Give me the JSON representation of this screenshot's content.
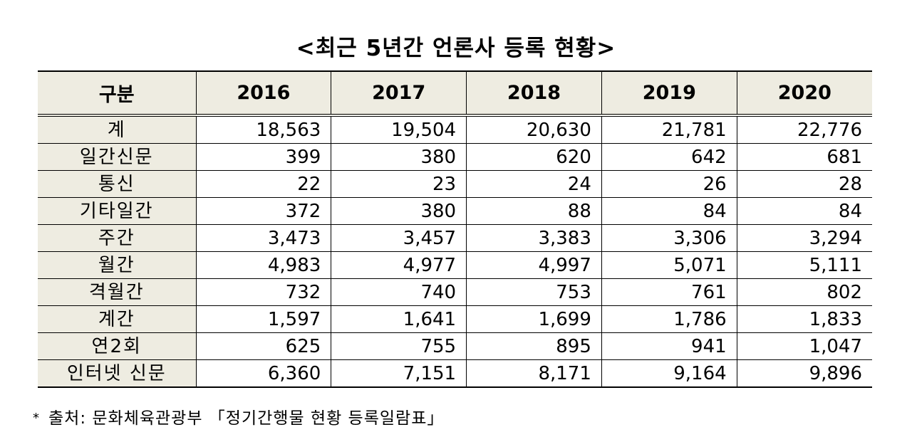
{
  "title": "<최근 5년간 언론사 등록 현황>",
  "table": {
    "headers": [
      "구분",
      "2016",
      "2017",
      "2018",
      "2019",
      "2020"
    ],
    "rows": [
      {
        "label": "계",
        "values": [
          "18,563",
          "19,504",
          "20,630",
          "21,781",
          "22,776"
        ]
      },
      {
        "label": "일간신문",
        "values": [
          "399",
          "380",
          "620",
          "642",
          "681"
        ]
      },
      {
        "label": "통신",
        "values": [
          "22",
          "23",
          "24",
          "26",
          "28"
        ]
      },
      {
        "label": "기타일간",
        "values": [
          "372",
          "380",
          "88",
          "84",
          "84"
        ]
      },
      {
        "label": "주간",
        "values": [
          "3,473",
          "3,457",
          "3,383",
          "3,306",
          "3,294"
        ]
      },
      {
        "label": "월간",
        "values": [
          "4,983",
          "4,977",
          "4,997",
          "5,071",
          "5,111"
        ]
      },
      {
        "label": "격월간",
        "values": [
          "732",
          "740",
          "753",
          "761",
          "802"
        ]
      },
      {
        "label": "계간",
        "values": [
          "1,597",
          "1,641",
          "1,699",
          "1,786",
          "1,833"
        ]
      },
      {
        "label": "연2회",
        "values": [
          "625",
          "755",
          "895",
          "941",
          "1,047"
        ]
      },
      {
        "label": "인터넷 신문",
        "values": [
          "6,360",
          "7,151",
          "8,171",
          "9,164",
          "9,896"
        ]
      }
    ]
  },
  "source": {
    "marker": "*",
    "text": "출처: 문화체육관광부 「정기간행물 현황 등록일람표」"
  }
}
